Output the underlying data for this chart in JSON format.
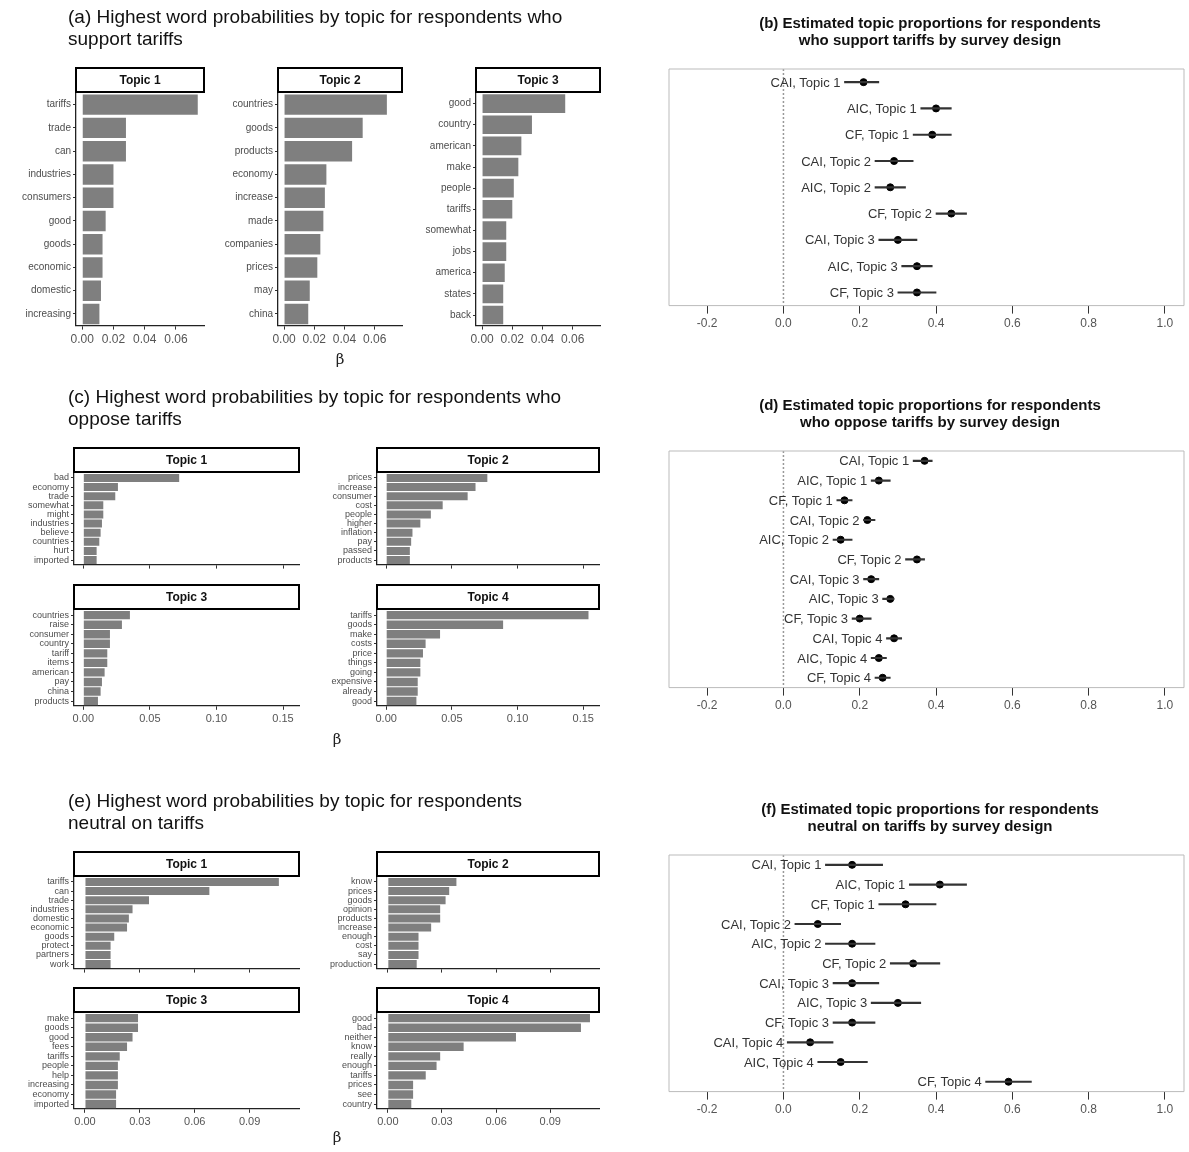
{
  "chart_data": [
    {
      "type": "bar",
      "orientation": "horizontal",
      "title": "(a) Highest word probabilities by topic for respondents who support tariffs",
      "subtitle": "Topic 1",
      "categories": [
        "tariffs",
        "trade",
        "can",
        "industries",
        "consumers",
        "good",
        "goods",
        "economic",
        "domestic",
        "increasing"
      ],
      "values": [
        0.074,
        0.028,
        0.028,
        0.02,
        0.02,
        0.015,
        0.013,
        0.013,
        0.012,
        0.011
      ],
      "color": "#7f7f7f",
      "xlim": [
        -0.004,
        0.078
      ],
      "xticks": [
        {
          "value": 0,
          "label": "0.00"
        },
        {
          "value": 0.02,
          "label": "0.02"
        },
        {
          "value": 0.04,
          "label": "0.04"
        },
        {
          "value": 0.06,
          "label": "0.06"
        }
      ]
    },
    {
      "type": "bar",
      "orientation": "horizontal",
      "subtitle": "Topic 2",
      "xlabel": "β",
      "categories": [
        "countries",
        "goods",
        "products",
        "economy",
        "increase",
        "made",
        "companies",
        "prices",
        "may",
        "china"
      ],
      "values": [
        0.068,
        0.052,
        0.045,
        0.028,
        0.027,
        0.026,
        0.024,
        0.022,
        0.017,
        0.016
      ],
      "color": "#7f7f7f",
      "xlim": [
        -0.004,
        0.078
      ],
      "xticks": [
        {
          "value": 0,
          "label": "0.00"
        },
        {
          "value": 0.02,
          "label": "0.02"
        },
        {
          "value": 0.04,
          "label": "0.04"
        },
        {
          "value": 0.06,
          "label": "0.06"
        }
      ]
    },
    {
      "type": "bar",
      "orientation": "horizontal",
      "subtitle": "Topic 3",
      "categories": [
        "good",
        "country",
        "american",
        "make",
        "people",
        "tariffs",
        "somewhat",
        "jobs",
        "america",
        "states",
        "back"
      ],
      "values": [
        0.055,
        0.033,
        0.026,
        0.024,
        0.021,
        0.02,
        0.016,
        0.016,
        0.015,
        0.014,
        0.014
      ],
      "color": "#7f7f7f",
      "xlim": [
        -0.004,
        0.078
      ],
      "xticks": [
        {
          "value": 0,
          "label": "0.00"
        },
        {
          "value": 0.02,
          "label": "0.02"
        },
        {
          "value": 0.04,
          "label": "0.04"
        },
        {
          "value": 0.06,
          "label": "0.06"
        }
      ]
    },
    {
      "type": "scatter",
      "orientation": "horizontal",
      "title": "(b) Estimated topic proportions for respondents who support tariffs by survey design",
      "categories": [
        "CAI, Topic 1",
        "AIC, Topic 1",
        "CF, Topic 1",
        "CAI, Topic 2",
        "AIC, Topic 2",
        "CF, Topic 2",
        "CAI, Topic 3",
        "AIC, Topic 3",
        "CF, Topic 3"
      ],
      "values": [
        0.21,
        0.4,
        0.39,
        0.29,
        0.28,
        0.44,
        0.3,
        0.35,
        0.35
      ],
      "errors": [
        [
          0.16,
          0.25
        ],
        [
          0.36,
          0.44
        ],
        [
          0.34,
          0.44
        ],
        [
          0.24,
          0.34
        ],
        [
          0.24,
          0.32
        ],
        [
          0.4,
          0.48
        ],
        [
          0.25,
          0.35
        ],
        [
          0.31,
          0.39
        ],
        [
          0.3,
          0.4
        ]
      ],
      "color": "#000000",
      "marker": "circle",
      "tick_labels": "x",
      "xlim": [
        -0.3,
        1.05
      ],
      "xticks": [
        -0.2,
        {
          "value": 0,
          "label": "0.0"
        },
        0.2,
        0.4,
        0.6,
        0.8,
        {
          "value": 1,
          "label": "1.0"
        }
      ],
      "ref_lines": [
        {
          "axis": "x",
          "value": 0,
          "line_style": "dotted",
          "color": "#999999"
        }
      ]
    },
    {
      "type": "bar",
      "orientation": "horizontal",
      "title": "(c) Highest word probabilities by topic for respondents who oppose tariffs",
      "subtitle": "Topic 1",
      "tick_labels": "y",
      "categories": [
        "bad",
        "economy",
        "trade",
        "somewhat",
        "might",
        "industries",
        "believe",
        "countries",
        "hurt",
        "imported"
      ],
      "values": [
        0.072,
        0.026,
        0.024,
        0.015,
        0.015,
        0.014,
        0.013,
        0.012,
        0.01,
        0.01
      ],
      "color": "#7f7f7f",
      "xlim": [
        -0.007,
        0.162
      ],
      "xticks": [
        {
          "value": 0,
          "label": null
        },
        {
          "value": 0.05,
          "label": null
        },
        {
          "value": 0.1,
          "label": null
        },
        {
          "value": 0.15,
          "label": null
        }
      ]
    },
    {
      "type": "bar",
      "orientation": "horizontal",
      "subtitle": "Topic 2",
      "tick_labels": "y",
      "categories": [
        "prices",
        "increase",
        "consumer",
        "cost",
        "people",
        "higher",
        "inflation",
        "pay",
        "passed",
        "products"
      ],
      "values": [
        0.077,
        0.068,
        0.062,
        0.043,
        0.034,
        0.026,
        0.02,
        0.019,
        0.018,
        0.018
      ],
      "color": "#7f7f7f",
      "xlim": [
        -0.007,
        0.162
      ],
      "xticks": [
        {
          "value": 0,
          "label": null
        },
        {
          "value": 0.05,
          "label": null
        },
        {
          "value": 0.1,
          "label": null
        },
        {
          "value": 0.15,
          "label": null
        }
      ]
    },
    {
      "type": "bar",
      "orientation": "horizontal",
      "subtitle": "Topic 3",
      "xlabel": "β",
      "categories": [
        "countries",
        "raise",
        "consumer",
        "country",
        "tariff",
        "items",
        "american",
        "pay",
        "china",
        "products"
      ],
      "values": [
        0.035,
        0.029,
        0.02,
        0.02,
        0.018,
        0.018,
        0.016,
        0.014,
        0.013,
        0.011
      ],
      "color": "#7f7f7f",
      "xlim": [
        -0.007,
        0.162
      ],
      "xticks": [
        {
          "value": 0,
          "label": "0.00"
        },
        {
          "value": 0.05,
          "label": "0.05"
        },
        {
          "value": 0.1,
          "label": "0.10"
        },
        {
          "value": 0.15,
          "label": "0.15"
        }
      ]
    },
    {
      "type": "bar",
      "orientation": "horizontal",
      "subtitle": "Topic 4",
      "categories": [
        "tariffs",
        "goods",
        "make",
        "costs",
        "price",
        "things",
        "going",
        "expensive",
        "already",
        "good"
      ],
      "values": [
        0.154,
        0.089,
        0.041,
        0.03,
        0.028,
        0.026,
        0.026,
        0.024,
        0.024,
        0.023
      ],
      "color": "#7f7f7f",
      "xlim": [
        -0.007,
        0.162
      ],
      "xticks": [
        {
          "value": 0,
          "label": "0.00"
        },
        {
          "value": 0.05,
          "label": "0.05"
        },
        {
          "value": 0.1,
          "label": "0.10"
        },
        {
          "value": 0.15,
          "label": "0.15"
        }
      ]
    },
    {
      "type": "scatter",
      "orientation": "horizontal",
      "title": "(d) Estimated topic proportions for respondents who oppose tariffs by survey design",
      "categories": [
        "CAI, Topic 1",
        "AIC, Topic 1",
        "CF, Topic 1",
        "CAI, Topic 2",
        "AIC, Topic 2",
        "CF, Topic 2",
        "CAI, Topic 3",
        "AIC, Topic 3",
        "CF, Topic 3",
        "CAI, Topic 4",
        "AIC, Topic 4",
        "CF, Topic 4"
      ],
      "values": [
        0.37,
        0.25,
        0.16,
        0.22,
        0.15,
        0.35,
        0.23,
        0.28,
        0.2,
        0.29,
        0.25,
        0.26
      ],
      "errors": [
        [
          0.34,
          0.39
        ],
        [
          0.23,
          0.28
        ],
        [
          0.14,
          0.18
        ],
        [
          0.21,
          0.24
        ],
        [
          0.13,
          0.18
        ],
        [
          0.32,
          0.37
        ],
        [
          0.21,
          0.25
        ],
        [
          0.26,
          0.29
        ],
        [
          0.18,
          0.23
        ],
        [
          0.27,
          0.31
        ],
        [
          0.23,
          0.27
        ],
        [
          0.24,
          0.28
        ]
      ],
      "color": "#000000",
      "marker": "circle",
      "tick_labels": "x",
      "xlim": [
        -0.3,
        1.05
      ],
      "xticks": [
        -0.2,
        {
          "value": 0,
          "label": "0.0"
        },
        0.2,
        0.4,
        0.6,
        0.8,
        {
          "value": 1,
          "label": "1.0"
        }
      ],
      "ref_lines": [
        {
          "axis": "x",
          "value": 0,
          "line_style": "dotted",
          "color": "#999999"
        }
      ]
    },
    {
      "type": "bar",
      "orientation": "horizontal",
      "title": "(e) Highest word probabilities by topic for respondents neutral on tariffs",
      "subtitle": "Topic 1",
      "tick_labels": "y",
      "categories": [
        "tariffs",
        "can",
        "trade",
        "industries",
        "domestic",
        "economic",
        "goods",
        "protect",
        "partners",
        "work"
      ],
      "values": [
        0.106,
        0.068,
        0.035,
        0.026,
        0.024,
        0.023,
        0.016,
        0.014,
        0.014,
        0.014
      ],
      "color": "#7f7f7f",
      "xlim": [
        -0.006,
        0.117
      ],
      "xticks": [
        {
          "value": 0,
          "label": null
        },
        {
          "value": 0.03,
          "label": null
        },
        {
          "value": 0.06,
          "label": null
        },
        {
          "value": 0.09,
          "label": null
        }
      ]
    },
    {
      "type": "bar",
      "orientation": "horizontal",
      "subtitle": "Topic 2",
      "tick_labels": "y",
      "categories": [
        "know",
        "prices",
        "goods",
        "opinion",
        "products",
        "increase",
        "enough",
        "cost",
        "say",
        "production"
      ],
      "values": [
        0.038,
        0.034,
        0.032,
        0.029,
        0.029,
        0.024,
        0.017,
        0.017,
        0.017,
        0.016
      ],
      "color": "#7f7f7f",
      "xlim": [
        -0.006,
        0.117
      ],
      "xticks": [
        {
          "value": 0,
          "label": null
        },
        {
          "value": 0.03,
          "label": null
        },
        {
          "value": 0.06,
          "label": null
        },
        {
          "value": 0.09,
          "label": null
        }
      ]
    },
    {
      "type": "bar",
      "orientation": "horizontal",
      "subtitle": "Topic 3",
      "xlabel": "β",
      "categories": [
        "make",
        "goods",
        "good",
        "fees",
        "tariffs",
        "people",
        "help",
        "increasing",
        "economy",
        "imported"
      ],
      "values": [
        0.029,
        0.029,
        0.026,
        0.023,
        0.019,
        0.018,
        0.018,
        0.018,
        0.017,
        0.017
      ],
      "color": "#7f7f7f",
      "xlim": [
        -0.006,
        0.117
      ],
      "xticks": [
        {
          "value": 0,
          "label": "0.00"
        },
        {
          "value": 0.03,
          "label": "0.03"
        },
        {
          "value": 0.06,
          "label": "0.06"
        },
        {
          "value": 0.09,
          "label": "0.09"
        }
      ]
    },
    {
      "type": "bar",
      "orientation": "horizontal",
      "subtitle": "Topic 4",
      "categories": [
        "good",
        "bad",
        "neither",
        "know",
        "really",
        "enough",
        "tariffs",
        "prices",
        "see",
        "country"
      ],
      "values": [
        0.112,
        0.107,
        0.071,
        0.042,
        0.029,
        0.027,
        0.021,
        0.014,
        0.014,
        0.013
      ],
      "color": "#7f7f7f",
      "xlim": [
        -0.006,
        0.117
      ],
      "xticks": [
        {
          "value": 0,
          "label": "0.00"
        },
        {
          "value": 0.03,
          "label": "0.03"
        },
        {
          "value": 0.06,
          "label": "0.06"
        },
        {
          "value": 0.09,
          "label": "0.09"
        }
      ]
    },
    {
      "type": "scatter",
      "orientation": "horizontal",
      "title": "(f) Estimated topic proportions for respondents neutral on tariffs by survey design",
      "categories": [
        "CAI, Topic 1",
        "AIC, Topic 1",
        "CF, Topic 1",
        "CAI, Topic 2",
        "AIC, Topic 2",
        "CF, Topic 2",
        "CAI, Topic 3",
        "AIC, Topic 3",
        "CF, Topic 3",
        "CAI, Topic 4",
        "AIC, Topic 4",
        "CF, Topic 4"
      ],
      "values": [
        0.18,
        0.41,
        0.32,
        0.09,
        0.18,
        0.34,
        0.18,
        0.3,
        0.18,
        0.07,
        0.15,
        0.59
      ],
      "errors": [
        [
          0.11,
          0.26
        ],
        [
          0.33,
          0.48
        ],
        [
          0.25,
          0.4
        ],
        [
          0.03,
          0.15
        ],
        [
          0.11,
          0.24
        ],
        [
          0.28,
          0.41
        ],
        [
          0.13,
          0.25
        ],
        [
          0.23,
          0.36
        ],
        [
          0.13,
          0.24
        ],
        [
          0.01,
          0.13
        ],
        [
          0.09,
          0.22
        ],
        [
          0.53,
          0.65
        ]
      ],
      "color": "#000000",
      "marker": "circle",
      "tick_labels": "x",
      "xlim": [
        -0.3,
        1.05
      ],
      "xticks": [
        -0.2,
        {
          "value": 0,
          "label": "0.0"
        },
        0.2,
        0.4,
        0.6,
        0.8,
        {
          "value": 1,
          "label": "1.0"
        }
      ],
      "ref_lines": [
        {
          "axis": "x",
          "value": 0,
          "line_style": "dotted",
          "color": "#999999"
        }
      ]
    }
  ]
}
